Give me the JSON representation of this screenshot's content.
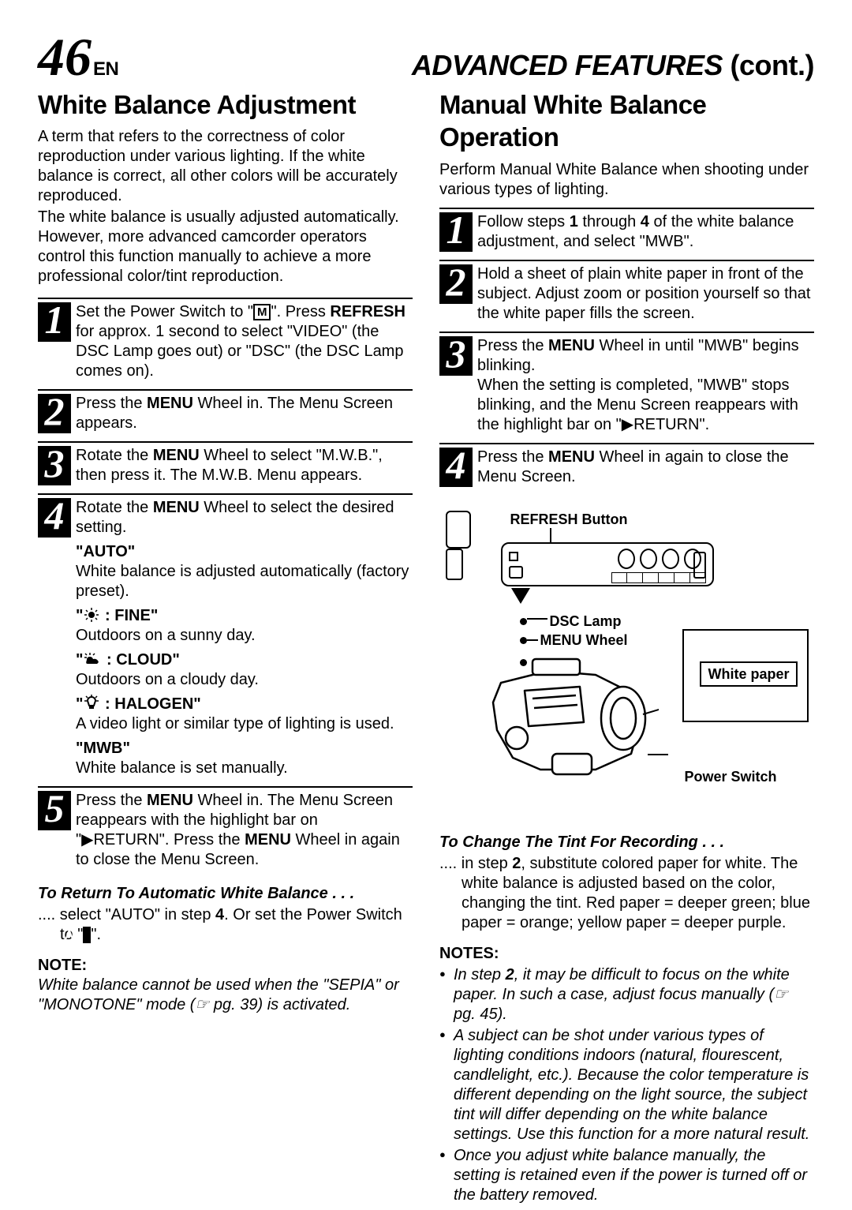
{
  "header": {
    "pageNumber": "46",
    "langTag": "EN",
    "title": "ADVANCED FEATURES",
    "cont": " (cont.)"
  },
  "left": {
    "title": "White Balance Adjustment",
    "intro1": "A term that refers to the correctness of color reproduction under various lighting. If the white balance is correct, all other colors will be accurately reproduced.",
    "intro2": "The white balance is usually adjusted automatically. However, more advanced camcorder operators control this function manually to achieve a more professional color/tint reproduction.",
    "steps": [
      {
        "n": "1",
        "html": "Set the Power Switch to \"<span class='boxed'>M</span>\". Press <b>REFRESH</b> for approx. 1 second to select \"VIDEO\" (the DSC Lamp goes out) or \"DSC\" (the DSC Lamp comes on)."
      },
      {
        "n": "2",
        "html": "Press the <b>MENU</b> Wheel in. The Menu Screen appears."
      },
      {
        "n": "3",
        "html": "Rotate the <b>MENU</b> Wheel to select \"M.W.B.\", then press it. The M.W.B. Menu appears."
      },
      {
        "n": "4",
        "html": "Rotate the <b>MENU</b> Wheel to select the desired setting.",
        "options": [
          {
            "label": "\"<b>AUTO</b>\"",
            "desc": "White balance is adjusted automatically (factory preset)."
          },
          {
            "label": "\"<svg class='wbicon' width='22' height='18'><circle cx='11' cy='9' r='4' fill='#000'/><g stroke='#000' stroke-width='1.5'><line x1='11' y1='0' x2='11' y2='3'/><line x1='11' y1='15' x2='11' y2='18'/><line x1='2' y1='9' x2='5' y2='9'/><line x1='17' y1='9' x2='20' y2='9'/><line x1='4' y1='3' x2='6' y2='5'/><line x1='16' y1='13' x2='18' y2='15'/><line x1='4' y1='15' x2='6' y2='13'/><line x1='16' y1='5' x2='18' y2='3'/></g></svg>&nbsp;: <b>FINE</b>\"",
            "desc": "Outdoors on a sunny day."
          },
          {
            "label": "\"<svg class='wbicon' width='24' height='18'><g stroke='#000' stroke-width='1.5'><line x1='9' y1='1' x2='9' y2='4'/><line x1='2' y1='7' x2='5' y2='7'/><line x1='3' y1='2' x2='5' y2='4'/><line x1='15' y1='2' x2='13' y2='4'/></g><path d='M5 10 Q5 6 9 6 Q12 6 13 9 Q17 8 19 11 Q21 13 18 15 L6 15 Q3 15 5 10 Z' fill='#000'/></svg>&nbsp;: <b>CLOUD</b>\"",
            "desc": "Outdoors on a cloudy day."
          },
          {
            "label": "\"<svg class='wbicon' width='22' height='20'><g stroke='#000' stroke-width='1.5' fill='none'><line x1='11' y1='0' x2='11' y2='3'/><line x1='2' y1='8' x2='5' y2='8'/><line x1='17' y1='8' x2='20' y2='8'/><line x1='4' y1='2' x2='6' y2='4'/><line x1='16' y1='4' x2='18' y2='2'/></g><path d='M6 8 A5 5 0 0 1 16 8 L14 14 L8 14 Z' fill='none' stroke='#000' stroke-width='2'/><rect x='8' y='14' width='6' height='4' fill='#000'/></svg>&nbsp;: <b>HALOGEN</b>\"",
            "desc": "A video light or similar type of lighting is used."
          },
          {
            "label": "\"<b>MWB</b>\"",
            "desc": "White balance is set manually."
          }
        ]
      },
      {
        "n": "5",
        "html": "Press the <b>MENU</b> Wheel in. The Menu Screen reappears with the highlight bar on \"▶RETURN\". Press the <b>MENU</b> Wheel in again to close the Menu Screen."
      }
    ],
    "retHead": "To Return To Automatic White Balance . . .",
    "retBody": ".... select \"AUTO\" in step <b>4</b>. Or set the Power Switch to \"<span class='boxed inv'>A</span>\".",
    "noteHead": "NOTE:",
    "note": "White balance cannot be used when the \"SEPIA\" or \"MONOTONE\" mode (☞ pg. 39) is activated."
  },
  "right": {
    "title": "Manual White Balance Operation",
    "intro": "Perform Manual White Balance when shooting under various types of lighting.",
    "steps": [
      {
        "n": "1",
        "html": "Follow steps <b>1</b> through <b>4</b> of the white balance adjustment, and select \"MWB\"."
      },
      {
        "n": "2",
        "html": "Hold a sheet of plain white paper in front of the subject. Adjust zoom or position yourself so that the white paper fills the screen."
      },
      {
        "n": "3",
        "html": "Press the <b>MENU</b> Wheel in until \"MWB\" begins blinking.<br>When the setting is completed, \"MWB\" stops blinking, and the Menu Screen reappears with the highlight bar on \"▶RETURN\"."
      },
      {
        "n": "4",
        "html": "Press the <b>MENU</b> Wheel in again to close the Menu Screen."
      }
    ],
    "diagram": {
      "refresh": "REFRESH Button",
      "dsc": "DSC Lamp",
      "menu": "MENU Wheel",
      "paper": "White paper",
      "power": "Power Switch"
    },
    "tintHead": "To Change The Tint For Recording . . .",
    "tintBody": ".... in step <b>2</b>, substitute colored paper for white. The white balance is adjusted based on the color, changing the tint. Red paper = deeper green; blue paper = orange; yellow paper = deeper purple.",
    "notesHead": "NOTES:",
    "notes": [
      "In step <b>2</b>, it may be difficult to focus on the white paper. In such a case, adjust focus manually (☞ pg. 45).",
      "A subject can be shot under various types of lighting conditions indoors (natural, flourescent, candlelight, etc.). Because the color temperature is different depending on the light source, the subject tint will differ depending on the white balance settings. Use this function for a more natural result.",
      "Once you adjust white balance manually, the setting is retained even if the power is turned off or the battery removed."
    ]
  }
}
